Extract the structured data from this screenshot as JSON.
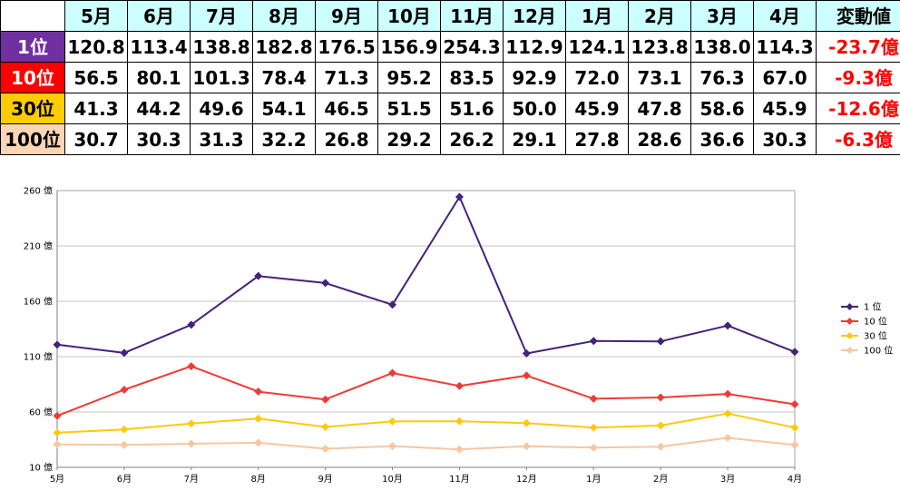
{
  "table": {
    "header_bg": "#ccffff",
    "change_color": "#ff0000",
    "months": [
      "5月",
      "6月",
      "7月",
      "8月",
      "9月",
      "10月",
      "11月",
      "12月",
      "1月",
      "2月",
      "3月",
      "4月"
    ],
    "change_header": "変動値",
    "rows": [
      {
        "label": "1位",
        "bg": "#7030a0",
        "fg": "#ffffff",
        "values": [
          "120.8",
          "113.4",
          "138.8",
          "182.8",
          "176.5",
          "156.9",
          "254.3",
          "112.9",
          "124.1",
          "123.8",
          "138.0",
          "114.3"
        ],
        "change": "-23.7億"
      },
      {
        "label": "10位",
        "bg": "#ff0000",
        "fg": "#ffffff",
        "values": [
          "56.5",
          "80.1",
          "101.3",
          "78.4",
          "71.3",
          "95.2",
          "83.5",
          "92.9",
          "72.0",
          "73.1",
          "76.3",
          "67.0"
        ],
        "change": "-9.3億"
      },
      {
        "label": "30位",
        "bg": "#ffcc00",
        "fg": "#000000",
        "values": [
          "41.3",
          "44.2",
          "49.6",
          "54.1",
          "46.5",
          "51.5",
          "51.6",
          "50.0",
          "45.9",
          "47.8",
          "58.6",
          "45.9"
        ],
        "change": "-12.6億"
      },
      {
        "label": "100位",
        "bg": "#fcd5b4",
        "fg": "#000000",
        "values": [
          "30.7",
          "30.3",
          "31.3",
          "32.2",
          "26.8",
          "29.2",
          "26.2",
          "29.1",
          "27.8",
          "28.6",
          "36.6",
          "30.3"
        ],
        "change": "-6.3億"
      }
    ]
  },
  "chart_data": {
    "type": "line",
    "marker": "diamond",
    "categories": [
      "5月",
      "6月",
      "7月",
      "8月",
      "9月",
      "10月",
      "11月",
      "12月",
      "1月",
      "2月",
      "3月",
      "4月"
    ],
    "ylim": [
      10,
      260
    ],
    "ytick_values": [
      10,
      60,
      110,
      160,
      210,
      260
    ],
    "ytick_labels": [
      "10 億",
      "60 億",
      "110 億",
      "160 億",
      "210 億",
      "260 億"
    ],
    "grid": true,
    "legend": "right",
    "series": [
      {
        "name": "1 位",
        "color": "#45227a",
        "values": [
          120.8,
          113.4,
          138.8,
          182.8,
          176.5,
          156.9,
          254.3,
          112.9,
          124.1,
          123.8,
          138.0,
          114.3
        ]
      },
      {
        "name": "10 位",
        "color": "#ef3b36",
        "values": [
          56.5,
          80.1,
          101.3,
          78.4,
          71.3,
          95.2,
          83.5,
          92.9,
          72.0,
          73.1,
          76.3,
          67.0
        ]
      },
      {
        "name": "30 位",
        "color": "#ffc90e",
        "values": [
          41.3,
          44.2,
          49.6,
          54.1,
          46.5,
          51.5,
          51.6,
          50.0,
          45.9,
          47.8,
          58.6,
          45.9
        ]
      },
      {
        "name": "100 位",
        "color": "#f9c6a0",
        "values": [
          30.7,
          30.3,
          31.3,
          32.2,
          26.8,
          29.2,
          26.2,
          29.1,
          27.8,
          28.6,
          36.6,
          30.3
        ]
      }
    ]
  }
}
